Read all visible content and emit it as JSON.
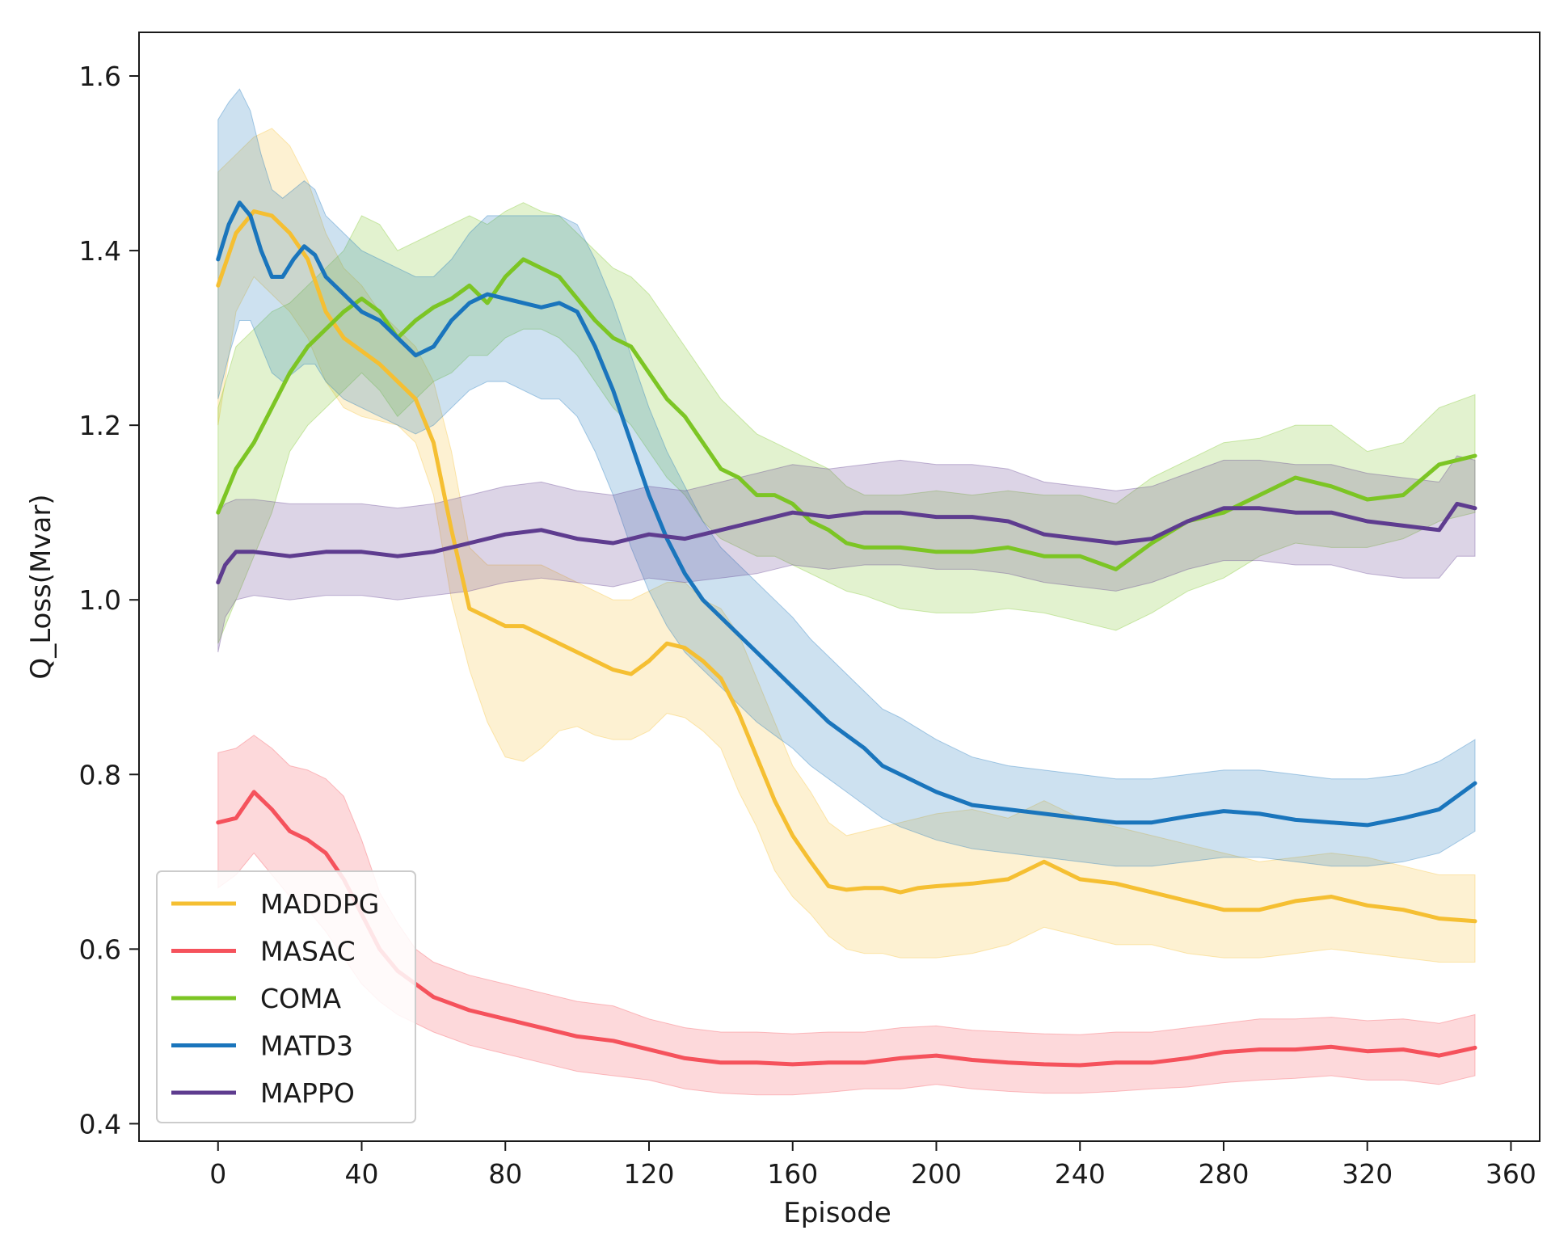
{
  "chart_data": {
    "type": "line",
    "title": "",
    "xlabel": "Episode",
    "ylabel": "Q_Loss(Mvar)",
    "xlim": [
      -22,
      368
    ],
    "ylim": [
      0.38,
      1.65
    ],
    "xticks": [
      0,
      40,
      80,
      120,
      160,
      200,
      240,
      280,
      320,
      360
    ],
    "yticks": [
      0.4,
      0.6,
      0.8,
      1.0,
      1.2,
      1.4,
      1.6
    ],
    "ytick_labels": [
      "0.4",
      "0.6",
      "0.8",
      "1.0",
      "1.2",
      "1.4",
      "1.6"
    ],
    "grid": false,
    "legend_position": "lower-left",
    "series": [
      {
        "name": "MADDPG",
        "color": "#f5bf32",
        "x": [
          0,
          5,
          10,
          15,
          20,
          25,
          30,
          35,
          40,
          45,
          50,
          55,
          60,
          65,
          70,
          75,
          80,
          85,
          90,
          95,
          100,
          105,
          110,
          115,
          120,
          125,
          130,
          135,
          140,
          145,
          150,
          155,
          160,
          165,
          170,
          175,
          180,
          185,
          190,
          195,
          200,
          210,
          220,
          230,
          240,
          250,
          260,
          270,
          280,
          290,
          300,
          310,
          320,
          330,
          340,
          350
        ],
        "y": [
          1.36,
          1.42,
          1.445,
          1.44,
          1.42,
          1.39,
          1.33,
          1.3,
          1.285,
          1.27,
          1.25,
          1.23,
          1.18,
          1.08,
          0.99,
          0.98,
          0.97,
          0.97,
          0.96,
          0.95,
          0.94,
          0.93,
          0.92,
          0.915,
          0.93,
          0.95,
          0.945,
          0.93,
          0.91,
          0.87,
          0.82,
          0.77,
          0.73,
          0.7,
          0.672,
          0.668,
          0.67,
          0.67,
          0.665,
          0.67,
          0.672,
          0.675,
          0.68,
          0.7,
          0.68,
          0.675,
          0.665,
          0.655,
          0.645,
          0.645,
          0.655,
          0.66,
          0.65,
          0.645,
          0.635,
          0.632
        ],
        "lower": [
          1.2,
          1.33,
          1.37,
          1.35,
          1.33,
          1.3,
          1.25,
          1.22,
          1.21,
          1.205,
          1.2,
          1.18,
          1.12,
          1.0,
          0.92,
          0.86,
          0.82,
          0.815,
          0.83,
          0.85,
          0.855,
          0.845,
          0.84,
          0.84,
          0.85,
          0.87,
          0.865,
          0.85,
          0.83,
          0.78,
          0.74,
          0.69,
          0.66,
          0.64,
          0.615,
          0.6,
          0.595,
          0.595,
          0.59,
          0.59,
          0.59,
          0.595,
          0.605,
          0.625,
          0.615,
          0.605,
          0.605,
          0.595,
          0.59,
          0.59,
          0.595,
          0.6,
          0.595,
          0.59,
          0.585,
          0.585
        ],
        "upper": [
          1.49,
          1.51,
          1.53,
          1.54,
          1.52,
          1.48,
          1.42,
          1.38,
          1.36,
          1.33,
          1.31,
          1.29,
          1.25,
          1.17,
          1.06,
          1.04,
          1.04,
          1.04,
          1.04,
          1.03,
          1.02,
          1.01,
          1.0,
          1.0,
          1.01,
          1.02,
          1.02,
          1.0,
          0.99,
          0.96,
          0.91,
          0.86,
          0.81,
          0.78,
          0.745,
          0.73,
          0.735,
          0.74,
          0.745,
          0.75,
          0.755,
          0.76,
          0.75,
          0.77,
          0.75,
          0.74,
          0.73,
          0.72,
          0.71,
          0.7,
          0.705,
          0.71,
          0.705,
          0.695,
          0.685,
          0.685
        ]
      },
      {
        "name": "MASAC",
        "color": "#f5525c",
        "x": [
          0,
          5,
          10,
          15,
          20,
          25,
          30,
          35,
          40,
          45,
          50,
          55,
          60,
          70,
          80,
          90,
          100,
          110,
          120,
          130,
          140,
          150,
          160,
          170,
          180,
          190,
          200,
          210,
          220,
          230,
          240,
          250,
          260,
          270,
          280,
          290,
          300,
          310,
          320,
          330,
          340,
          350
        ],
        "y": [
          0.745,
          0.75,
          0.78,
          0.76,
          0.735,
          0.725,
          0.71,
          0.68,
          0.64,
          0.6,
          0.575,
          0.56,
          0.545,
          0.53,
          0.52,
          0.51,
          0.5,
          0.495,
          0.485,
          0.475,
          0.47,
          0.47,
          0.468,
          0.47,
          0.47,
          0.475,
          0.478,
          0.473,
          0.47,
          0.468,
          0.467,
          0.47,
          0.47,
          0.475,
          0.482,
          0.485,
          0.485,
          0.488,
          0.483,
          0.485,
          0.478,
          0.487
        ],
        "lower": [
          0.67,
          0.685,
          0.71,
          0.685,
          0.66,
          0.645,
          0.62,
          0.59,
          0.56,
          0.54,
          0.525,
          0.515,
          0.505,
          0.49,
          0.48,
          0.47,
          0.46,
          0.455,
          0.45,
          0.44,
          0.435,
          0.433,
          0.433,
          0.436,
          0.44,
          0.44,
          0.445,
          0.44,
          0.437,
          0.435,
          0.435,
          0.437,
          0.44,
          0.442,
          0.447,
          0.45,
          0.452,
          0.455,
          0.45,
          0.45,
          0.445,
          0.455
        ],
        "upper": [
          0.825,
          0.83,
          0.845,
          0.83,
          0.81,
          0.805,
          0.795,
          0.775,
          0.725,
          0.665,
          0.63,
          0.6,
          0.585,
          0.57,
          0.56,
          0.55,
          0.54,
          0.535,
          0.52,
          0.51,
          0.505,
          0.505,
          0.503,
          0.505,
          0.505,
          0.51,
          0.512,
          0.507,
          0.505,
          0.503,
          0.502,
          0.505,
          0.505,
          0.51,
          0.515,
          0.52,
          0.52,
          0.522,
          0.518,
          0.52,
          0.515,
          0.525
        ]
      },
      {
        "name": "COMA",
        "color": "#7cc524",
        "x": [
          0,
          5,
          10,
          15,
          20,
          25,
          30,
          35,
          40,
          45,
          50,
          55,
          60,
          65,
          70,
          75,
          80,
          85,
          90,
          95,
          100,
          105,
          110,
          115,
          120,
          125,
          130,
          135,
          140,
          145,
          150,
          155,
          160,
          165,
          170,
          175,
          180,
          190,
          200,
          210,
          220,
          230,
          240,
          250,
          260,
          270,
          280,
          290,
          300,
          310,
          320,
          330,
          340,
          350
        ],
        "y": [
          1.1,
          1.15,
          1.18,
          1.22,
          1.26,
          1.29,
          1.31,
          1.33,
          1.345,
          1.33,
          1.3,
          1.32,
          1.335,
          1.345,
          1.36,
          1.34,
          1.37,
          1.39,
          1.38,
          1.37,
          1.345,
          1.32,
          1.3,
          1.29,
          1.26,
          1.23,
          1.21,
          1.18,
          1.15,
          1.14,
          1.12,
          1.12,
          1.11,
          1.09,
          1.08,
          1.065,
          1.06,
          1.06,
          1.055,
          1.055,
          1.06,
          1.05,
          1.05,
          1.035,
          1.065,
          1.09,
          1.1,
          1.12,
          1.14,
          1.13,
          1.115,
          1.12,
          1.155,
          1.165
        ],
        "lower": [
          0.95,
          1.0,
          1.05,
          1.1,
          1.17,
          1.2,
          1.22,
          1.24,
          1.26,
          1.24,
          1.21,
          1.23,
          1.25,
          1.26,
          1.28,
          1.28,
          1.3,
          1.31,
          1.31,
          1.3,
          1.28,
          1.25,
          1.22,
          1.2,
          1.17,
          1.14,
          1.12,
          1.09,
          1.07,
          1.06,
          1.05,
          1.05,
          1.04,
          1.03,
          1.02,
          1.01,
          1.005,
          0.99,
          0.985,
          0.985,
          0.99,
          0.985,
          0.975,
          0.965,
          0.985,
          1.01,
          1.025,
          1.05,
          1.065,
          1.06,
          1.06,
          1.07,
          1.09,
          1.1
        ],
        "upper": [
          1.22,
          1.29,
          1.31,
          1.33,
          1.34,
          1.36,
          1.38,
          1.4,
          1.44,
          1.43,
          1.4,
          1.41,
          1.42,
          1.43,
          1.44,
          1.43,
          1.445,
          1.455,
          1.445,
          1.44,
          1.42,
          1.4,
          1.38,
          1.37,
          1.35,
          1.32,
          1.29,
          1.26,
          1.23,
          1.21,
          1.19,
          1.18,
          1.17,
          1.16,
          1.15,
          1.13,
          1.12,
          1.12,
          1.125,
          1.12,
          1.125,
          1.12,
          1.12,
          1.11,
          1.14,
          1.16,
          1.18,
          1.185,
          1.2,
          1.2,
          1.17,
          1.18,
          1.22,
          1.235
        ]
      },
      {
        "name": "MATD3",
        "color": "#1a75bc",
        "x": [
          0,
          3,
          6,
          9,
          12,
          15,
          18,
          21,
          24,
          27,
          30,
          35,
          40,
          45,
          50,
          55,
          60,
          65,
          70,
          75,
          80,
          85,
          90,
          95,
          100,
          105,
          110,
          115,
          120,
          125,
          130,
          135,
          140,
          145,
          150,
          155,
          160,
          165,
          170,
          175,
          180,
          185,
          190,
          200,
          210,
          220,
          230,
          240,
          250,
          260,
          270,
          280,
          290,
          300,
          310,
          320,
          330,
          340,
          350
        ],
        "y": [
          1.39,
          1.43,
          1.455,
          1.44,
          1.4,
          1.37,
          1.37,
          1.39,
          1.405,
          1.395,
          1.37,
          1.35,
          1.33,
          1.32,
          1.3,
          1.28,
          1.29,
          1.32,
          1.34,
          1.35,
          1.345,
          1.34,
          1.335,
          1.34,
          1.33,
          1.29,
          1.24,
          1.18,
          1.12,
          1.07,
          1.03,
          1.0,
          0.98,
          0.96,
          0.94,
          0.92,
          0.9,
          0.88,
          0.86,
          0.845,
          0.83,
          0.81,
          0.8,
          0.78,
          0.765,
          0.76,
          0.755,
          0.75,
          0.745,
          0.745,
          0.752,
          0.758,
          0.755,
          0.748,
          0.745,
          0.742,
          0.75,
          0.76,
          0.79
        ],
        "lower": [
          1.23,
          1.28,
          1.32,
          1.32,
          1.29,
          1.26,
          1.25,
          1.26,
          1.27,
          1.27,
          1.25,
          1.23,
          1.22,
          1.21,
          1.2,
          1.19,
          1.2,
          1.22,
          1.24,
          1.25,
          1.25,
          1.24,
          1.23,
          1.23,
          1.21,
          1.17,
          1.12,
          1.06,
          1.01,
          0.97,
          0.94,
          0.92,
          0.9,
          0.88,
          0.86,
          0.845,
          0.83,
          0.81,
          0.795,
          0.78,
          0.765,
          0.75,
          0.74,
          0.725,
          0.715,
          0.71,
          0.705,
          0.7,
          0.695,
          0.695,
          0.7,
          0.705,
          0.705,
          0.7,
          0.695,
          0.695,
          0.7,
          0.71,
          0.735
        ],
        "upper": [
          1.55,
          1.57,
          1.585,
          1.56,
          1.51,
          1.47,
          1.46,
          1.47,
          1.48,
          1.47,
          1.44,
          1.42,
          1.4,
          1.39,
          1.38,
          1.37,
          1.37,
          1.39,
          1.42,
          1.44,
          1.44,
          1.44,
          1.44,
          1.44,
          1.43,
          1.39,
          1.34,
          1.28,
          1.22,
          1.17,
          1.13,
          1.09,
          1.06,
          1.04,
          1.02,
          1.0,
          0.98,
          0.955,
          0.935,
          0.915,
          0.895,
          0.875,
          0.865,
          0.84,
          0.82,
          0.81,
          0.805,
          0.8,
          0.795,
          0.795,
          0.8,
          0.805,
          0.805,
          0.8,
          0.795,
          0.795,
          0.8,
          0.815,
          0.84
        ]
      },
      {
        "name": "MAPPO",
        "color": "#5e3c8f",
        "x": [
          0,
          2,
          5,
          10,
          20,
          30,
          40,
          50,
          60,
          70,
          80,
          90,
          100,
          110,
          120,
          130,
          140,
          150,
          160,
          170,
          180,
          190,
          200,
          210,
          220,
          230,
          240,
          250,
          260,
          270,
          280,
          290,
          300,
          310,
          320,
          330,
          340,
          345,
          350
        ],
        "y": [
          1.02,
          1.04,
          1.055,
          1.055,
          1.05,
          1.055,
          1.055,
          1.05,
          1.055,
          1.065,
          1.075,
          1.08,
          1.07,
          1.065,
          1.075,
          1.07,
          1.08,
          1.09,
          1.1,
          1.095,
          1.1,
          1.1,
          1.095,
          1.095,
          1.09,
          1.075,
          1.07,
          1.065,
          1.07,
          1.09,
          1.105,
          1.105,
          1.1,
          1.1,
          1.09,
          1.085,
          1.08,
          1.11,
          1.105
        ],
        "lower": [
          0.94,
          0.98,
          1.0,
          1.005,
          1.0,
          1.005,
          1.005,
          1.0,
          1.005,
          1.01,
          1.02,
          1.025,
          1.02,
          1.015,
          1.025,
          1.02,
          1.025,
          1.03,
          1.04,
          1.035,
          1.04,
          1.04,
          1.035,
          1.035,
          1.03,
          1.02,
          1.015,
          1.01,
          1.02,
          1.035,
          1.045,
          1.045,
          1.04,
          1.04,
          1.03,
          1.025,
          1.025,
          1.05,
          1.05
        ],
        "upper": [
          1.1,
          1.11,
          1.115,
          1.115,
          1.11,
          1.11,
          1.11,
          1.105,
          1.11,
          1.12,
          1.13,
          1.135,
          1.125,
          1.12,
          1.13,
          1.125,
          1.135,
          1.145,
          1.155,
          1.15,
          1.155,
          1.16,
          1.155,
          1.155,
          1.15,
          1.135,
          1.13,
          1.125,
          1.13,
          1.145,
          1.16,
          1.16,
          1.155,
          1.155,
          1.145,
          1.14,
          1.135,
          1.165,
          1.16
        ]
      }
    ]
  }
}
